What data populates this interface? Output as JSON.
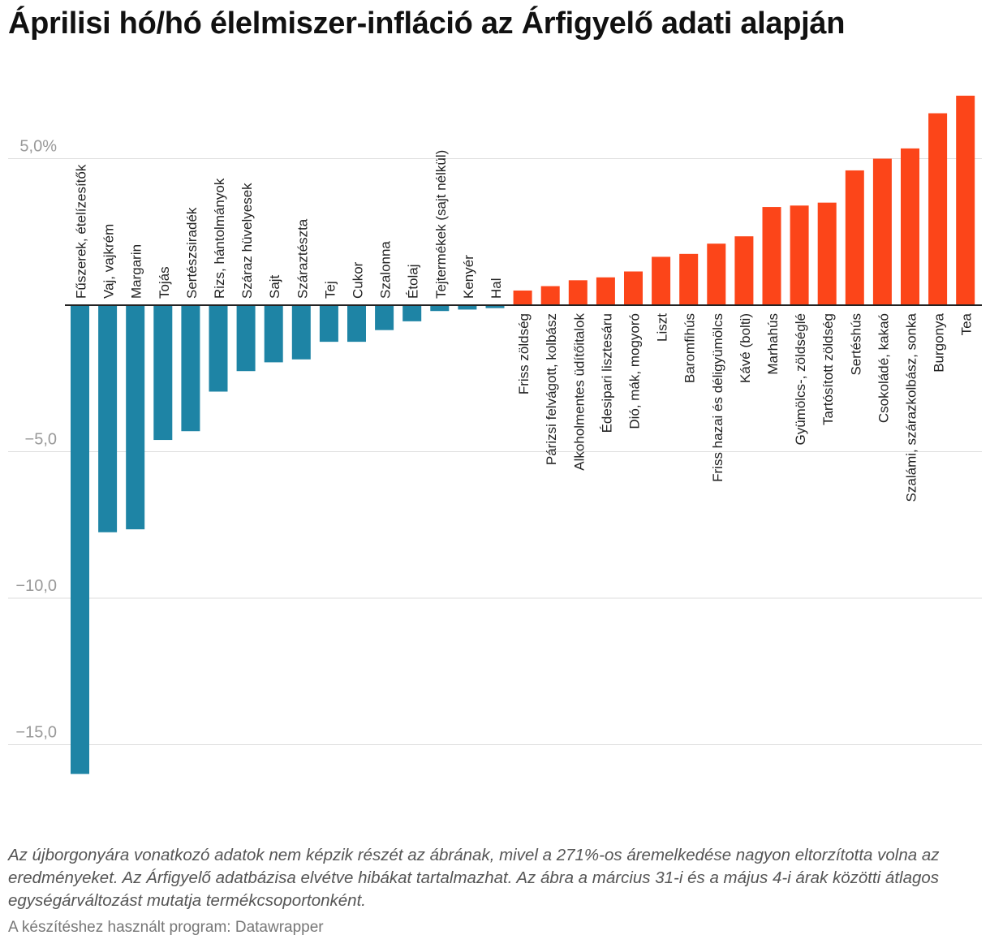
{
  "title": "Áprilisi hó/hó élelmiszer-infláció az Árfigyelő adati alapján",
  "note": "Az újborgonyára vonatkozó adatok nem képzik részét az ábrának, mivel a 271%-os áremelkedése nagyon eltorzította volna az eredményeket. Az Árfigyelő adatbázisa elvétve hibákat tartalmazhat. Az ábra a március 31-i és a május 4-i árak közötti átlagos egységárváltozást mutatja termékcsoportonként.",
  "byline": "A készítéshez használt program: Datawrapper",
  "colors": {
    "negative": "#1e84a5",
    "positive": "#fc4519",
    "grid": "#dddddd",
    "axis": "#222222",
    "tick": "#999999"
  },
  "chart_data": {
    "type": "bar",
    "title": "Áprilisi hó/hó élelmiszer-infláció az Árfigyelő adati alapján",
    "xlabel": "",
    "ylabel": "",
    "ylim": [
      -16.5,
      7.5
    ],
    "yticks": [
      5,
      -5,
      -10,
      -15
    ],
    "ytick_labels": [
      "5,0%",
      "−5,0",
      "−10,0",
      "−15,0"
    ],
    "categories": [
      "Fűszerek, ételízesítők",
      "Vaj, vajkrém",
      "Margarin",
      "Tojás",
      "Sertészsiradék",
      "Rizs, hántolmányok",
      "Száraz hüvelyesek",
      "Sajt",
      "Száraztészta",
      "Tej",
      "Cukor",
      "Szalonna",
      "Étolaj",
      "Tejtermékek (sajt nélkül)",
      "Kenyér",
      "Hal",
      "Friss zöldség",
      "Párizsi felvágott, kolbász",
      "Alkoholmentes üdítőitalok",
      "Édesipari lisztesáru",
      "Dió, mák, mogyoró",
      "Liszt",
      "Baromfihús",
      "Friss hazai és déligyümölcs",
      "Kávé (bolti)",
      "Marhahús",
      "Gyümölcs-, zöldséglé",
      "Tartósított zöldség",
      "Sertéshús",
      "Csokoládé, kakaó",
      "Szalámi, szárazkolbász, sonka",
      "Burgonya",
      "Tea"
    ],
    "values": [
      -16.0,
      -7.75,
      -7.65,
      -4.6,
      -4.3,
      -2.95,
      -2.25,
      -1.95,
      -1.85,
      -1.25,
      -1.25,
      -0.85,
      -0.55,
      -0.2,
      -0.15,
      -0.1,
      0.5,
      0.65,
      0.85,
      0.95,
      1.15,
      1.65,
      1.75,
      2.1,
      2.35,
      3.35,
      3.4,
      3.5,
      4.6,
      5.0,
      5.35,
      6.55,
      7.15
    ]
  }
}
